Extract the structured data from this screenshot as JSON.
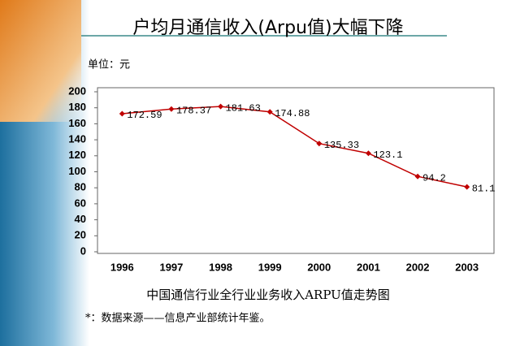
{
  "chart_data": {
    "type": "line",
    "title": "户均月通信收入(Arpu值)大幅下降",
    "unit_label": "单位：元",
    "caption": "中国通信行业全行业业务收入ARPU值走势图",
    "note": "*：数据来源——信息产业部统计年鉴。",
    "categories": [
      "1996",
      "1997",
      "1998",
      "1999",
      "2000",
      "2001",
      "2002",
      "2003"
    ],
    "values": [
      172.59,
      178.37,
      181.63,
      174.88,
      135.33,
      123.1,
      94.2,
      81.1
    ],
    "color": "#c00000",
    "ylim": [
      0,
      200
    ],
    "yticks": [
      0,
      20,
      40,
      60,
      80,
      100,
      120,
      140,
      160,
      180,
      200
    ],
    "grid": false
  }
}
